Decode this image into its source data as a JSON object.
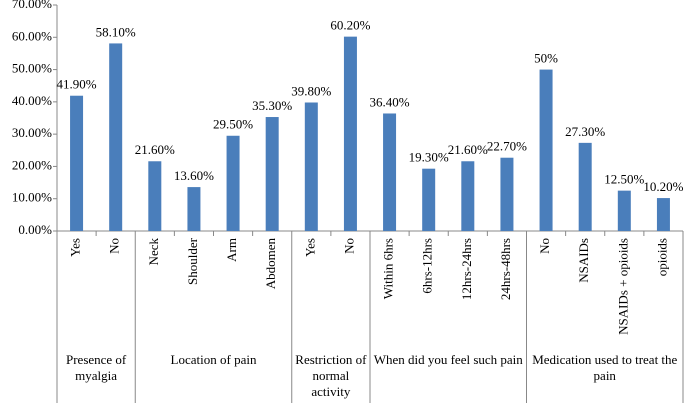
{
  "chart_data": {
    "type": "bar",
    "color": "#4a7ebb",
    "ylim": [
      0,
      70
    ],
    "yticks": [
      {
        "value": 0,
        "label": "0.00%"
      },
      {
        "value": 10,
        "label": "10.00%"
      },
      {
        "value": 20,
        "label": "20.00%"
      },
      {
        "value": 30,
        "label": "30.00%"
      },
      {
        "value": 40,
        "label": "40.00%"
      },
      {
        "value": 50,
        "label": "50.00%"
      },
      {
        "value": 60,
        "label": "60.00%"
      },
      {
        "value": 70,
        "label": "70.00%"
      }
    ],
    "groups": [
      {
        "name": "Presence of myalgia",
        "categories": [
          "Yes",
          "No"
        ],
        "values": [
          41.9,
          58.1
        ],
        "value_labels": [
          "41.90%",
          "58.10%"
        ]
      },
      {
        "name": "Location of pain",
        "categories": [
          "Neck",
          "Shoulder",
          "Arm",
          "Abdomen"
        ],
        "values": [
          21.6,
          13.6,
          29.5,
          35.3
        ],
        "value_labels": [
          "21.60%",
          "13.60%",
          "29.50%",
          "35.30%"
        ]
      },
      {
        "name": "Restriction of normal activity",
        "categories": [
          "Yes",
          "No"
        ],
        "values": [
          39.8,
          60.2
        ],
        "value_labels": [
          "39.80%",
          "60.20%"
        ]
      },
      {
        "name": "When did you feel such pain",
        "categories": [
          "Within 6hrs",
          "6hrs-12hrs",
          "12hrs-24hrs",
          "24hrs-48hrs"
        ],
        "values": [
          36.4,
          19.3,
          21.6,
          22.7
        ],
        "value_labels": [
          "36.40%",
          "19.30%",
          "21.60%",
          "22.70%"
        ]
      },
      {
        "name": "Medication used to treat the pain",
        "categories": [
          "No",
          "NSAIDs",
          "NSAIDs + opioids",
          "opioids"
        ],
        "values": [
          50,
          27.3,
          12.5,
          10.2
        ],
        "value_labels": [
          "50%",
          "27.30%",
          "12.50%",
          "10.20%"
        ]
      }
    ]
  }
}
